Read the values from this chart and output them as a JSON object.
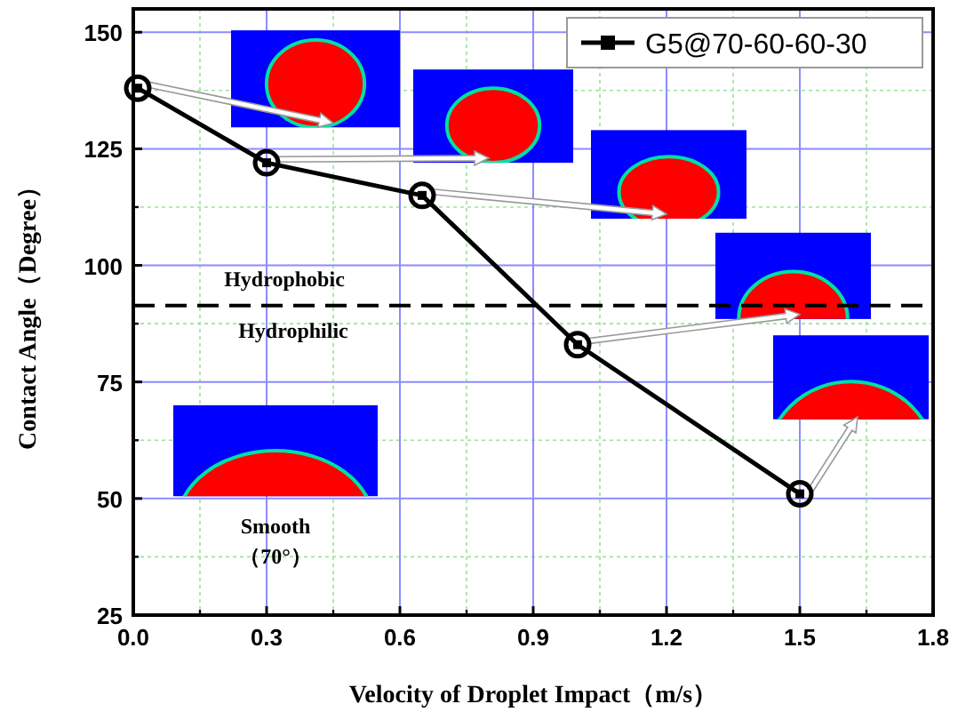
{
  "chart_data": {
    "type": "line",
    "xlabel": "Velocity of Droplet Impact（m/s）",
    "ylabel": "Contact Angle（Degree）",
    "x": [
      0.01,
      0.3,
      0.65,
      1.0,
      1.5
    ],
    "series": [
      {
        "name": "G5@70-60-60-30",
        "color": "#000000",
        "values": [
          138,
          122,
          115,
          83,
          51
        ]
      }
    ],
    "xlim": [
      0,
      1.8
    ],
    "xticks": [
      {
        "value": 0,
        "label": "0.0"
      },
      {
        "value": 0.15,
        "label": null
      },
      0.3,
      {
        "value": 0.45,
        "label": null
      },
      0.6,
      {
        "value": 0.75,
        "label": null
      },
      0.9,
      {
        "value": 1.05,
        "label": null
      },
      1.2,
      {
        "value": 1.35,
        "label": null
      },
      1.5,
      {
        "value": 1.65,
        "label": null
      },
      1.8
    ],
    "ylim": [
      25,
      155
    ],
    "yticks": [
      25,
      {
        "value": 37.5,
        "label": null
      },
      50,
      {
        "value": 62.5,
        "label": null
      },
      75,
      {
        "value": 87.5,
        "label": null
      },
      100,
      {
        "value": 112.5,
        "label": null
      },
      125,
      {
        "value": 137.5,
        "label": null
      },
      150
    ],
    "grid": true,
    "legend": "top right",
    "marker": "circle",
    "line_style": "solid",
    "ref_lines": [
      {
        "axis": "y",
        "value": 91.4,
        "color": "#000000",
        "line_style": "dashed"
      }
    ],
    "annotations": [
      "Hydrophobic",
      "Hydrophilic",
      "Smooth",
      "（70°）"
    ]
  }
}
